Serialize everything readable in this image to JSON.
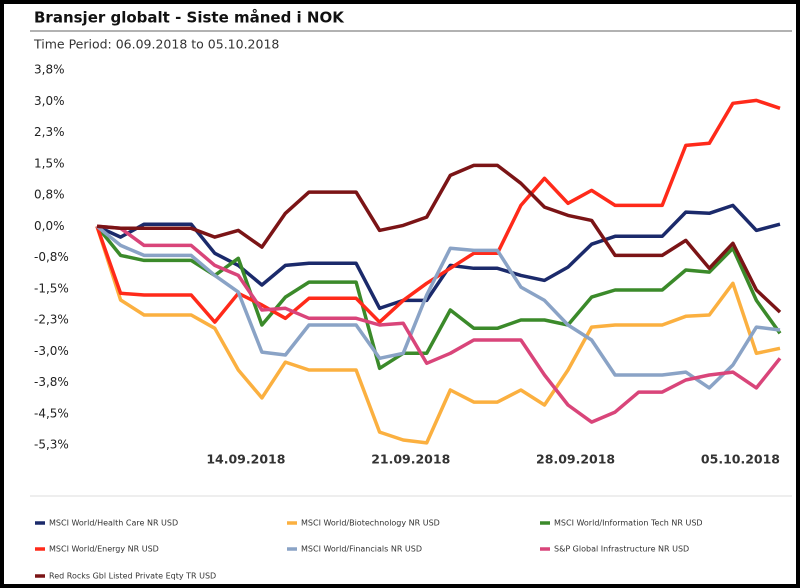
{
  "chart_data": {
    "type": "line",
    "title": "Bransjer globalt - Siste måned i NOK",
    "subtitle": "Time Period: 06.09.2018 to 05.10.2018",
    "x": [
      "06.09.2018",
      "07.09.2018",
      "08.09.2018",
      "09.09.2018",
      "10.09.2018",
      "11.09.2018",
      "12.09.2018",
      "13.09.2018",
      "14.09.2018",
      "15.09.2018",
      "16.09.2018",
      "17.09.2018",
      "18.09.2018",
      "19.09.2018",
      "20.09.2018",
      "21.09.2018",
      "22.09.2018",
      "23.09.2018",
      "24.09.2018",
      "25.09.2018",
      "26.09.2018",
      "27.09.2018",
      "28.09.2018",
      "29.09.2018",
      "30.09.2018",
      "01.10.2018",
      "02.10.2018",
      "03.10.2018",
      "04.10.2018",
      "05.10.2018"
    ],
    "xticks": [
      "14.09.2018",
      "21.09.2018",
      "28.09.2018",
      "05.10.2018"
    ],
    "ylim": [
      -5.25,
      3.75
    ],
    "yticks": [
      {
        "value": 3.75,
        "label": "3,8%"
      },
      {
        "value": 3.0,
        "label": "3,0%"
      },
      {
        "value": 2.25,
        "label": "2,3%"
      },
      {
        "value": 1.5,
        "label": "1,5%"
      },
      {
        "value": 0.75,
        "label": "0,8%"
      },
      {
        "value": 0,
        "label": "0,0%"
      },
      {
        "value": -0.75,
        "label": "-0,8%"
      },
      {
        "value": -1.5,
        "label": "-1,5%"
      },
      {
        "value": -2.25,
        "label": "-2,3%"
      },
      {
        "value": -3.0,
        "label": "-3,0%"
      },
      {
        "value": -3.75,
        "label": "-3,8%"
      },
      {
        "value": -4.5,
        "label": "-4,5%"
      },
      {
        "value": -5.25,
        "label": "-5,3%"
      }
    ],
    "grid": false,
    "legend": "bottom",
    "series": [
      {
        "name": "MSCI World/Health Care NR USD",
        "color": "#1b2a6b",
        "values": [
          0,
          -0.26,
          0.05,
          0.05,
          0.05,
          -0.65,
          -0.94,
          -1.41,
          -0.94,
          -0.89,
          -0.89,
          -0.89,
          -1.97,
          -1.78,
          -1.78,
          -0.94,
          -1.01,
          -1.01,
          -1.18,
          -1.3,
          -0.98,
          -0.43,
          -0.24,
          -0.24,
          -0.24,
          0.34,
          0.31,
          0.5,
          -0.1,
          0.05
        ]
      },
      {
        "name": "MSCI World/Biotechnology NR USD",
        "color": "#fbb040",
        "values": [
          0,
          -1.77,
          -2.13,
          -2.13,
          -2.13,
          -2.45,
          -3.45,
          -4.12,
          -3.26,
          -3.45,
          -3.45,
          -3.45,
          -4.94,
          -5.13,
          -5.2,
          -3.93,
          -4.22,
          -4.22,
          -3.93,
          -4.29,
          -3.45,
          -2.42,
          -2.37,
          -2.37,
          -2.37,
          -2.16,
          -2.13,
          -1.37,
          -3.05,
          -2.93
        ]
      },
      {
        "name": "MSCI World/Information Tech NR USD",
        "color": "#3b8a2a",
        "values": [
          0,
          -0.7,
          -0.82,
          -0.82,
          -0.82,
          -1.18,
          -0.77,
          -2.37,
          -1.7,
          -1.34,
          -1.34,
          -1.34,
          -3.41,
          -3.05,
          -3.05,
          -2.01,
          -2.45,
          -2.45,
          -2.25,
          -2.25,
          -2.37,
          -1.7,
          -1.53,
          -1.53,
          -1.53,
          -1.05,
          -1.1,
          -0.53,
          -1.78,
          -2.57
        ]
      },
      {
        "name": "MSCI World/Energy NR USD",
        "color": "#ff2a1a",
        "values": [
          0,
          -1.61,
          -1.65,
          -1.65,
          -1.65,
          -2.3,
          -1.61,
          -1.89,
          -2.21,
          -1.73,
          -1.73,
          -1.73,
          -2.3,
          -1.78,
          -1.37,
          -1.01,
          -0.65,
          -0.65,
          0.5,
          1.15,
          0.55,
          0.86,
          0.5,
          0.5,
          0.5,
          1.94,
          1.99,
          2.95,
          3.02,
          2.83
        ]
      },
      {
        "name": "MSCI World/Financials NR USD",
        "color": "#8aa3c6",
        "values": [
          0,
          -0.46,
          -0.7,
          -0.7,
          -0.7,
          -1.18,
          -1.58,
          -3.02,
          -3.09,
          -2.37,
          -2.37,
          -2.37,
          -3.17,
          -3.05,
          -1.65,
          -0.53,
          -0.58,
          -0.58,
          -1.46,
          -1.78,
          -2.37,
          -2.73,
          -3.57,
          -3.57,
          -3.57,
          -3.5,
          -3.88,
          -3.33,
          -2.42,
          -2.49
        ]
      },
      {
        "name": "S&P Global Infrastructure NR USD",
        "color": "#d9457a",
        "values": [
          0,
          -0.05,
          -0.46,
          -0.46,
          -0.46,
          -0.94,
          -1.18,
          -2.01,
          -1.97,
          -2.21,
          -2.21,
          -2.21,
          -2.37,
          -2.33,
          -3.29,
          -3.05,
          -2.73,
          -2.73,
          -2.73,
          -3.57,
          -4.29,
          -4.7,
          -4.46,
          -3.98,
          -3.98,
          -3.69,
          -3.57,
          -3.5,
          -3.88,
          -3.17
        ]
      },
      {
        "name": "Red Rocks Gbl Listed Private Eqty TR USD",
        "color": "#7b1416",
        "values": [
          0,
          -0.05,
          -0.05,
          -0.05,
          -0.05,
          -0.26,
          -0.1,
          -0.5,
          0.31,
          0.82,
          0.82,
          0.82,
          -0.1,
          0.02,
          0.22,
          1.22,
          1.46,
          1.46,
          1.03,
          0.46,
          0.26,
          0.14,
          -0.7,
          -0.7,
          -0.7,
          -0.34,
          -1.01,
          -0.41,
          -1.53,
          -2.06
        ]
      }
    ]
  }
}
